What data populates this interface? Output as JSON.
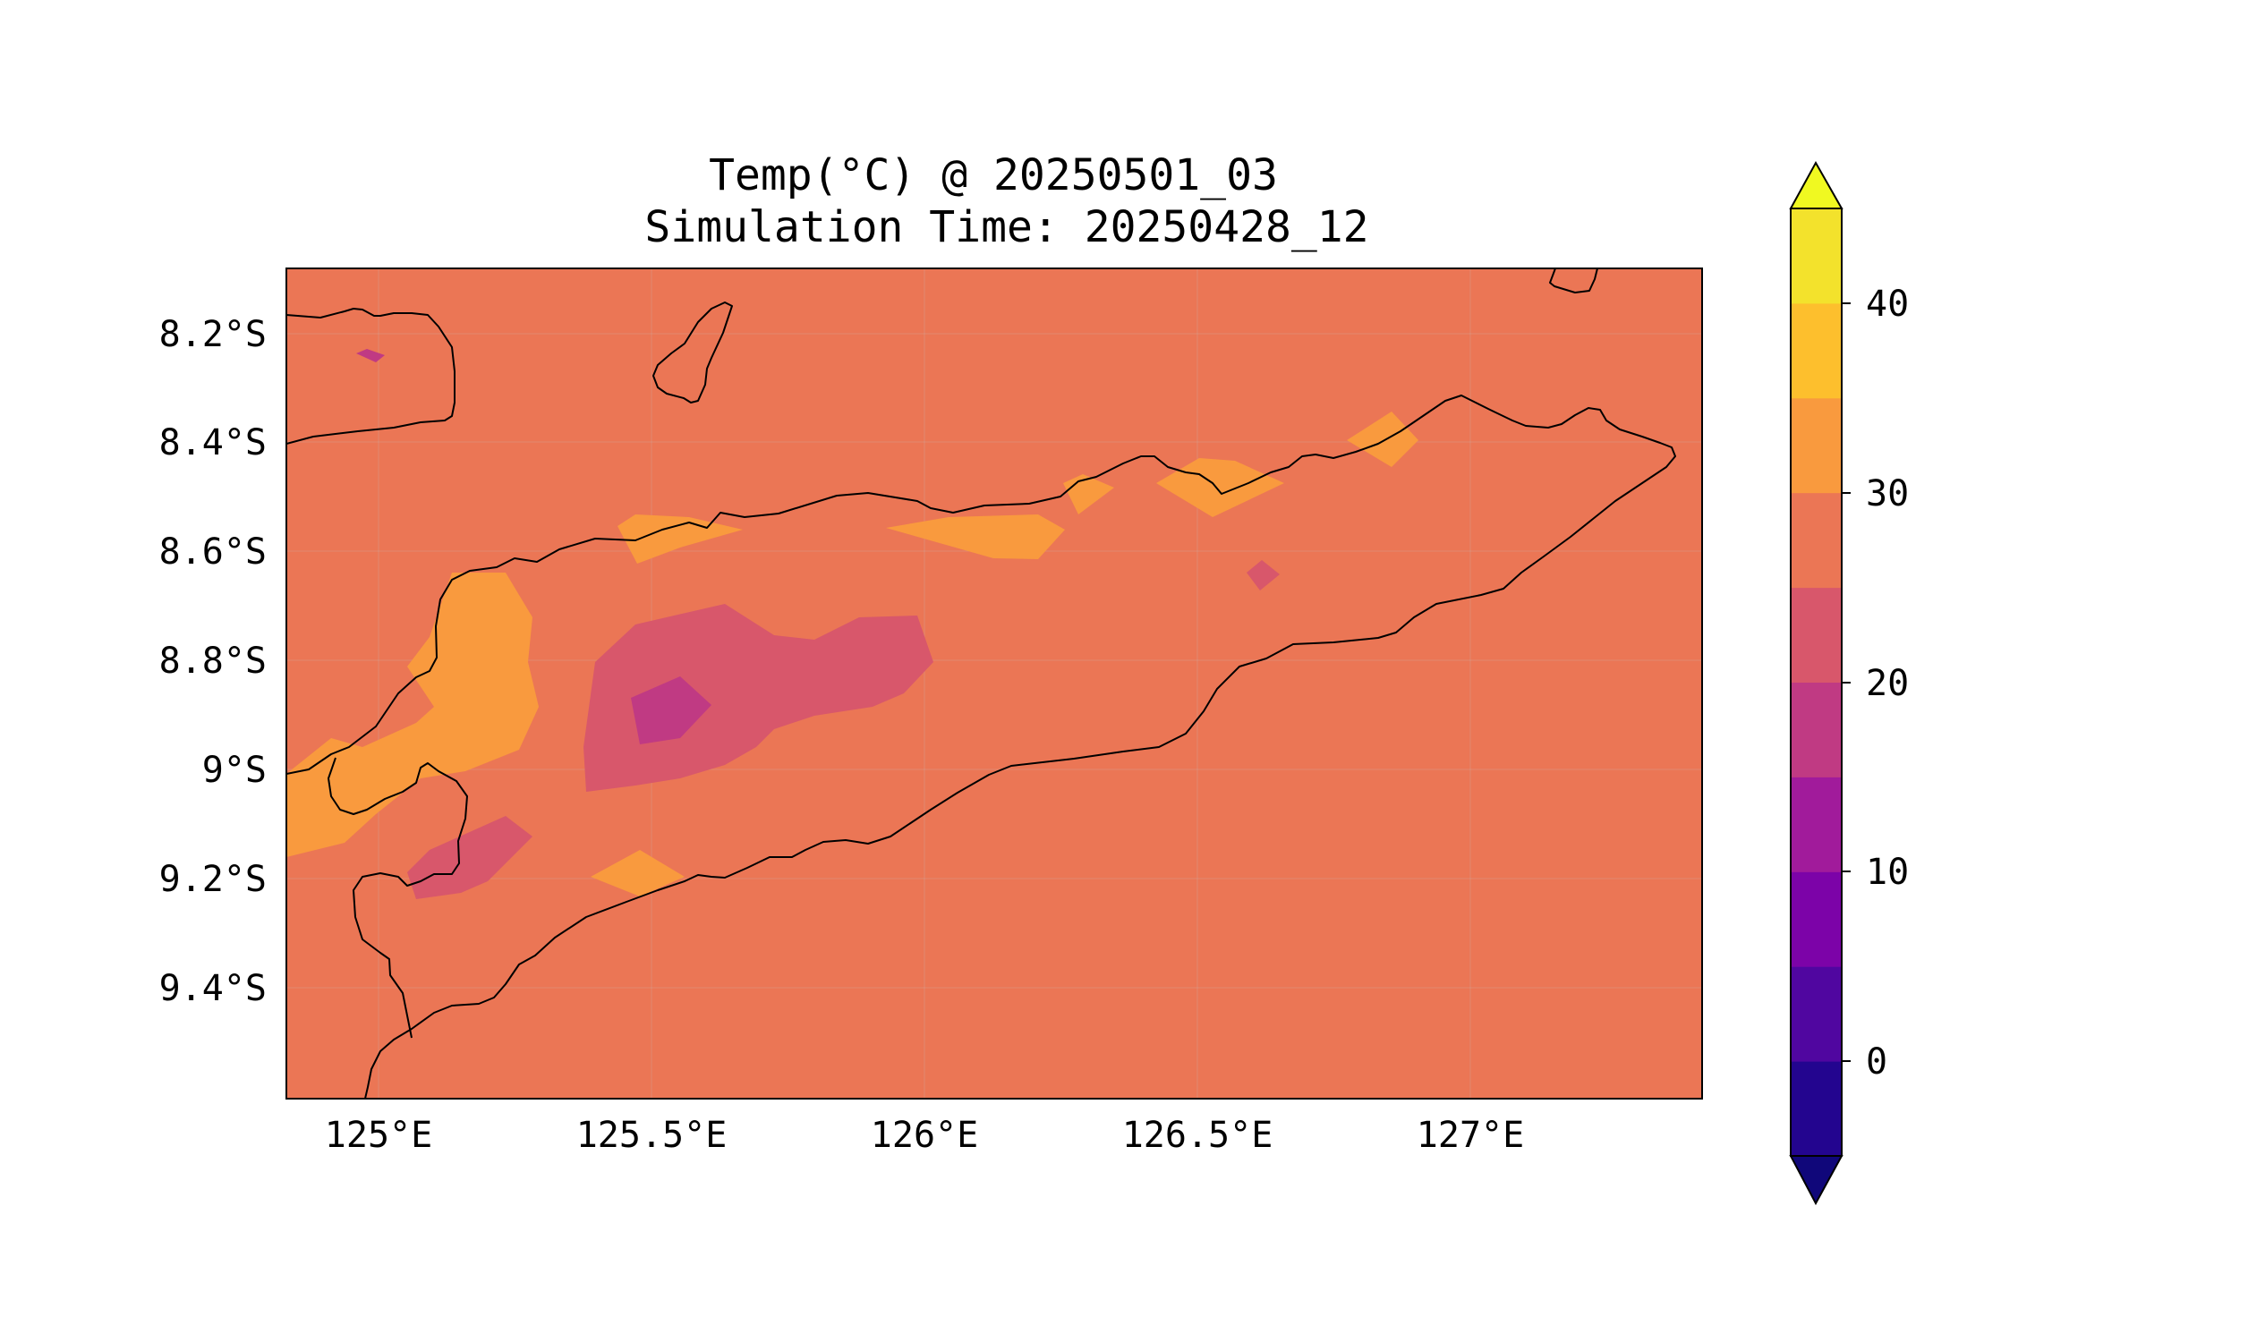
{
  "title": {
    "line1": "Temp(°C) @ 20250501_03",
    "line2": "Simulation Time: 20250428_12"
  },
  "map": {
    "extent": {
      "lon": [
        124.83,
        127.42
      ],
      "lat": [
        -9.6,
        -8.08
      ]
    },
    "x_ticks": [
      {
        "value": 125.0,
        "label": "125°E"
      },
      {
        "value": 125.5,
        "label": "125.5°E"
      },
      {
        "value": 126.0,
        "label": "126°E"
      },
      {
        "value": 126.5,
        "label": "126.5°E"
      },
      {
        "value": 127.0,
        "label": "127°E"
      }
    ],
    "y_ticks": [
      {
        "value": -8.2,
        "label": "8.2°S"
      },
      {
        "value": -8.4,
        "label": "8.4°S"
      },
      {
        "value": -8.6,
        "label": "8.6°S"
      },
      {
        "value": -8.8,
        "label": "8.8°S"
      },
      {
        "value": -9.0,
        "label": "9°S"
      },
      {
        "value": -9.2,
        "label": "9.2°S"
      },
      {
        "value": -9.4,
        "label": "9.4°S"
      }
    ],
    "background_level_range": [
      25,
      30
    ]
  },
  "colorbar": {
    "levels": [
      -5,
      0,
      5,
      10,
      15,
      20,
      25,
      30,
      35,
      40,
      45
    ],
    "colors": [
      "#23058f",
      "#5006a0",
      "#7c03a8",
      "#a11b9b",
      "#c03a83",
      "#d8576b",
      "#eb7655",
      "#f99a3e",
      "#fdbf2d",
      "#f3e22c"
    ],
    "under_color": "#10077a",
    "over_color": "#f0f921",
    "ticks": [
      {
        "value": 0,
        "label": "0"
      },
      {
        "value": 10,
        "label": "10"
      },
      {
        "value": 20,
        "label": "20"
      },
      {
        "value": 30,
        "label": "30"
      },
      {
        "value": 40,
        "label": "40"
      }
    ]
  },
  "colors": {
    "background_field": "#eb7655",
    "warm_patch": "#f99a3e",
    "warmer_patch": "#fdbf2d",
    "cool_patch": "#d8576b",
    "cooler_patch": "#c03a83",
    "coastline": "#000000"
  }
}
